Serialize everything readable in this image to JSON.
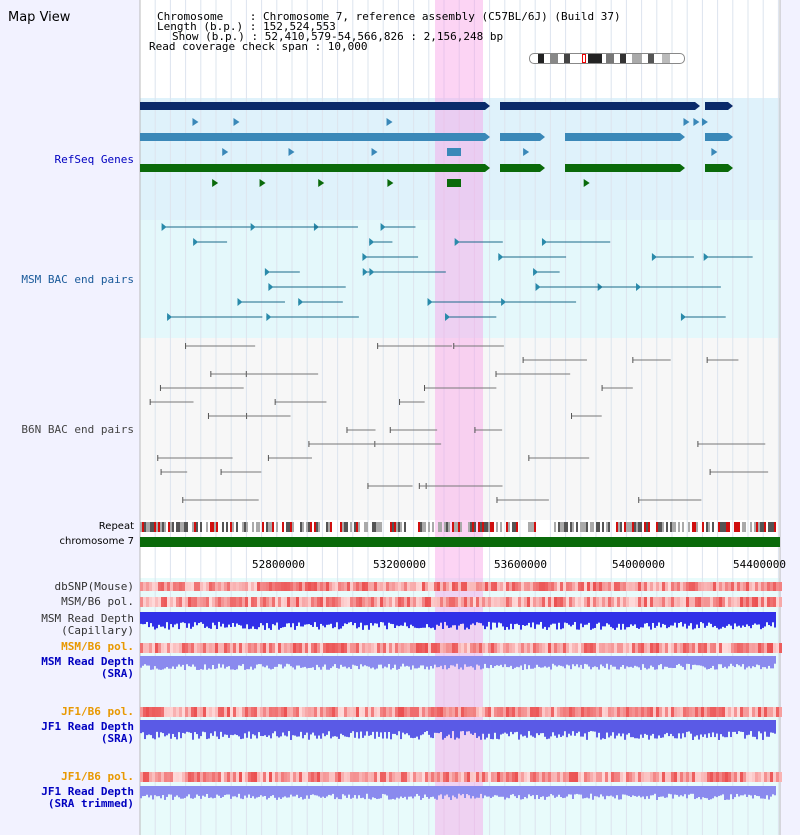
{
  "header": {
    "title": "Map View",
    "chromosome_line": "Chromosome    : Chromosome 7, reference assembly (C57BL/6J) (Build 37)",
    "length_line": "Length (b.p.) : 152,524,553",
    "show_line": "Show (b.p.) : 52,410,579-54,566,826 : 2,156,248 bp",
    "coverage_line": "Read coverage check span : 10,000"
  },
  "tracks": {
    "refseq": "RefSeq Genes",
    "msm_bac": "MSM BAC end pairs",
    "b6n_bac": "B6N BAC end pairs",
    "repeat": "Repeat",
    "chromosome": "chromosome 7",
    "dbsnp": "dbSNP(Mouse)",
    "msm_b6_pol1": "MSM/B6 pol.",
    "msm_depth_cap": "MSM Read Depth\n(Capillary)",
    "msm_b6_pol2": "MSM/B6 pol.",
    "msm_depth_sra": "MSM Read Depth\n(SRA)",
    "jf1_b6_pol1": "JF1/B6 pol.",
    "jf1_depth_sra": "JF1 Read Depth\n(SRA)",
    "jf1_b6_pol2": "JF1/B6 pol.",
    "jf1_depth_trim": "JF1 Read Depth\n(SRA trimmed)"
  },
  "axis": {
    "ticks": [
      "52800000",
      "53200000",
      "53600000",
      "54000000",
      "54400000"
    ]
  },
  "colors": {
    "label_blue": "#0000c0",
    "label_teal": "#1a5a9a",
    "label_grey": "#444444",
    "label_orange": "#e89800",
    "refseq_dark": "#0a2a6a",
    "refseq_mid": "#3a88b8",
    "refseq_green": "#0a6a0a",
    "highlight": "#f8a0e6"
  }
}
